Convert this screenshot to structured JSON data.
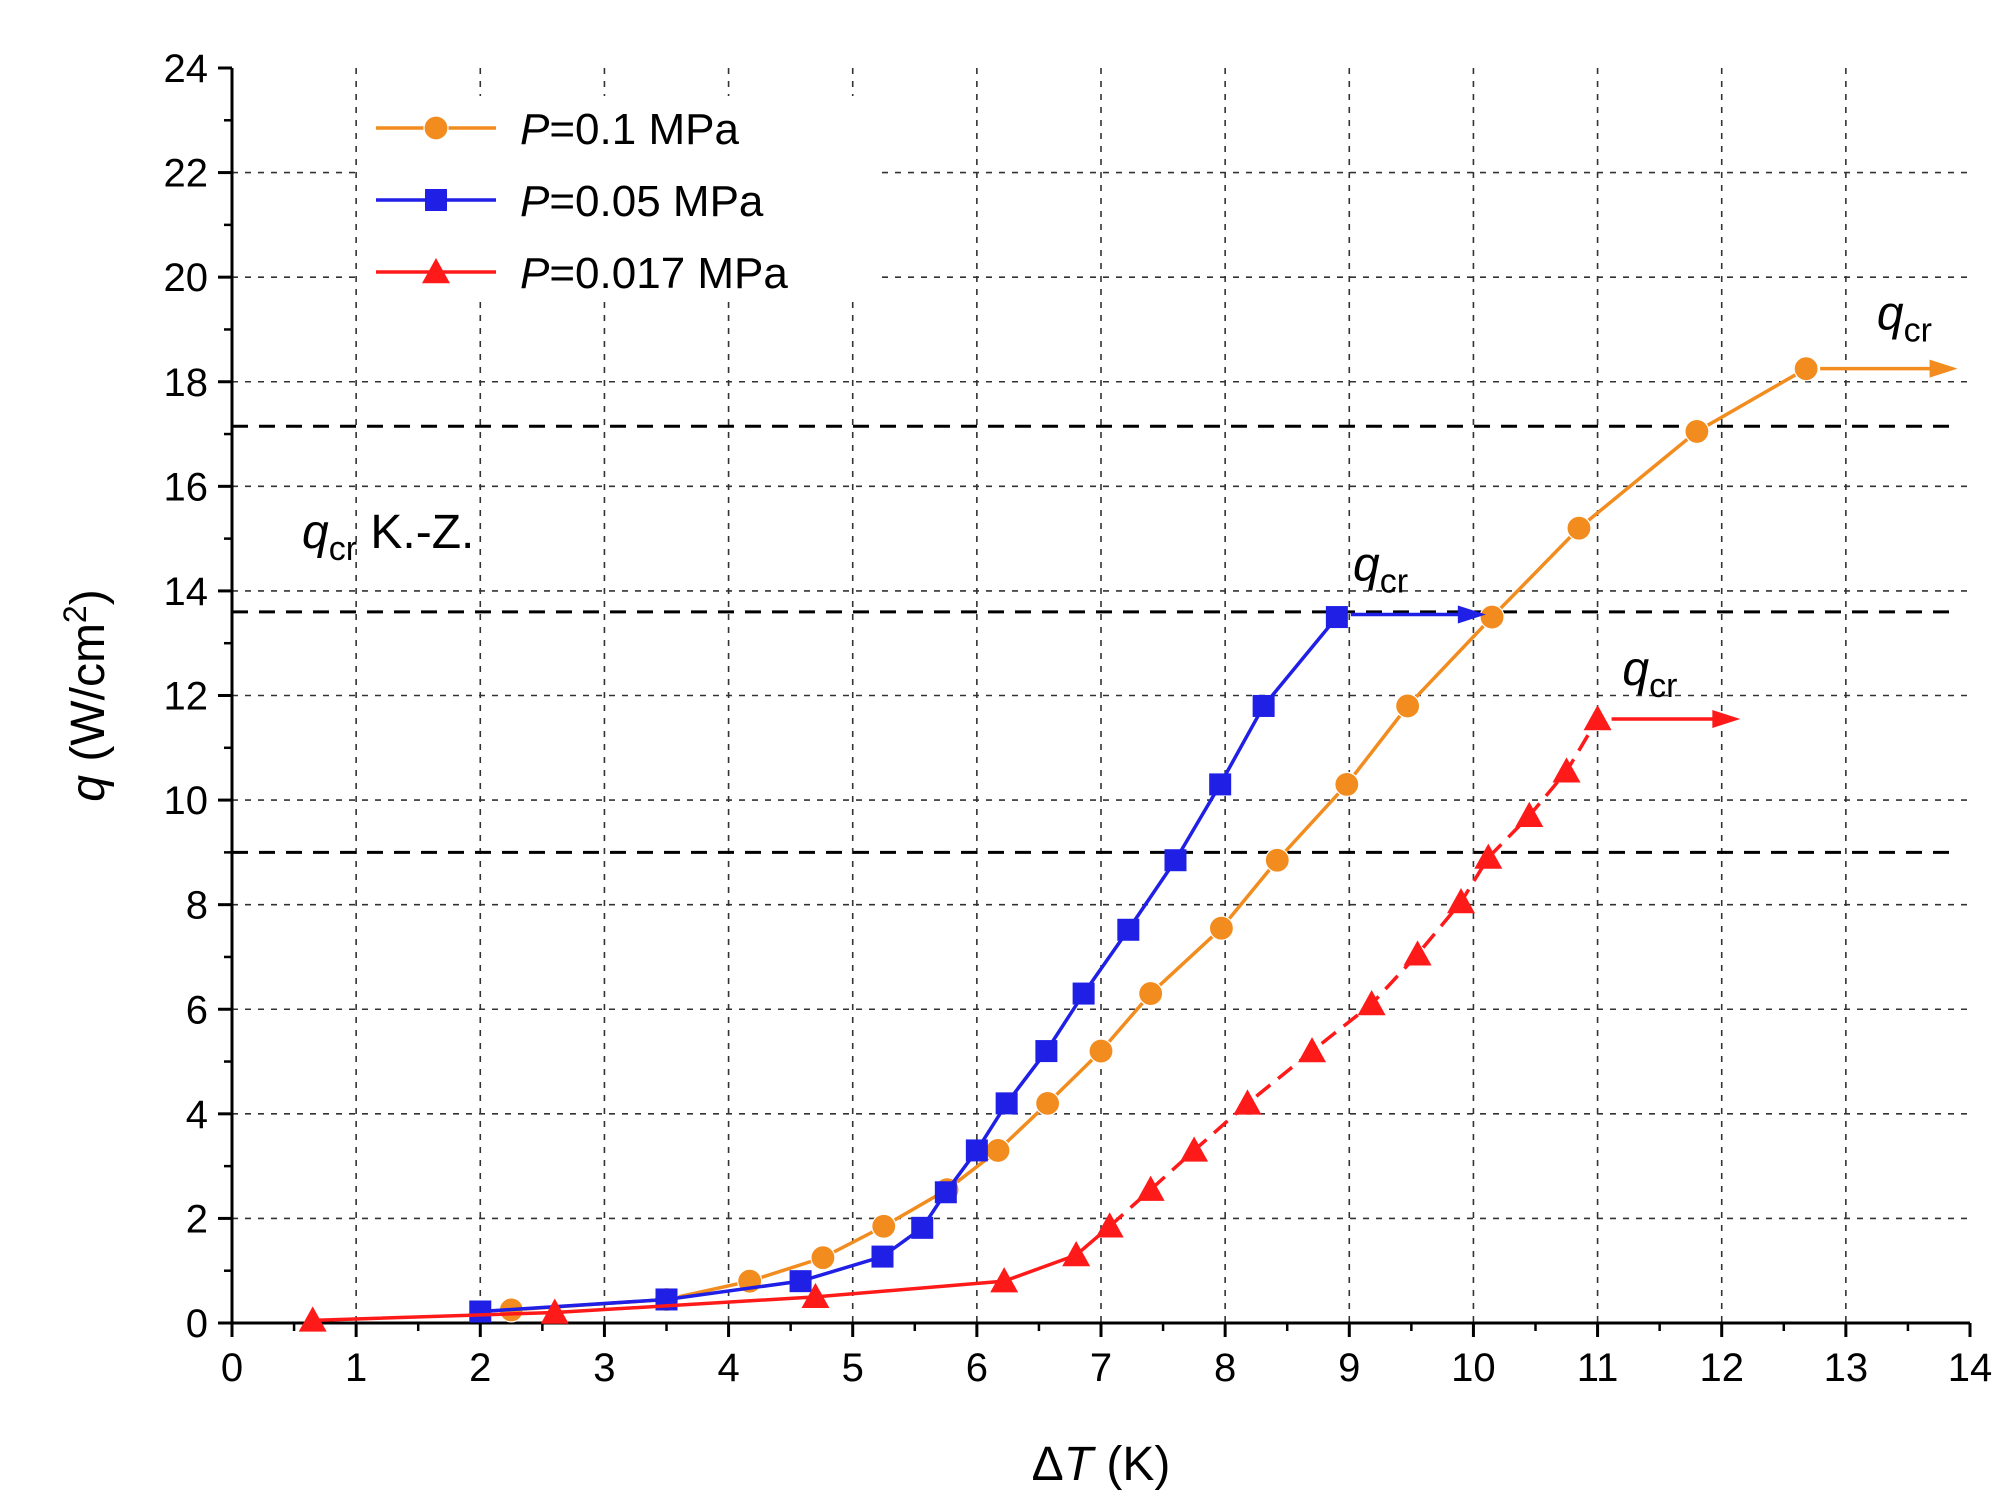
{
  "chart_data": {
    "type": "line",
    "xlabel_symbol": "Δ",
    "xlabel_var": "T",
    "xlabel_unit": " (K)",
    "ylabel_var": "q",
    "ylabel_unit": " (W/cm",
    "ylabel_sup": "2",
    "ylabel_close": ")",
    "xlim": [
      0,
      14
    ],
    "ylim": [
      0,
      24
    ],
    "x_ticks": [
      "0",
      "1",
      "2",
      "3",
      "4",
      "5",
      "6",
      "7",
      "8",
      "9",
      "10",
      "11",
      "12",
      "13",
      "14"
    ],
    "y_ticks": [
      "0",
      "2",
      "4",
      "6",
      "8",
      "10",
      "12",
      "14",
      "16",
      "18",
      "20",
      "22",
      "24"
    ],
    "grid": true,
    "legend_position": "top-left",
    "series": [
      {
        "name_var": "P",
        "name_rest": "=0.1 MPa",
        "color": "#f28c1e",
        "marker": "circle",
        "line_style": "solid",
        "x": [
          2.25,
          3.5,
          4.17,
          4.76,
          5.25,
          5.76,
          6.17,
          6.57,
          7.0,
          7.4,
          7.97,
          8.42,
          8.98,
          9.47,
          10.15,
          10.85,
          11.8,
          12.68
        ],
        "y": [
          0.25,
          0.45,
          0.8,
          1.25,
          1.85,
          2.55,
          3.3,
          4.2,
          5.2,
          6.3,
          7.55,
          8.85,
          10.3,
          11.8,
          13.5,
          15.2,
          17.05,
          18.25
        ]
      },
      {
        "name_var": "P",
        "name_rest": "=0.05 MPa",
        "color": "#1f1fe6",
        "marker": "square",
        "line_style": "solid",
        "x": [
          2.0,
          3.5,
          4.58,
          5.24,
          5.56,
          5.75,
          6.0,
          6.24,
          6.56,
          6.86,
          7.22,
          7.6,
          7.96,
          8.31,
          8.9
        ],
        "y": [
          0.22,
          0.45,
          0.8,
          1.27,
          1.82,
          2.5,
          3.3,
          4.2,
          5.2,
          6.3,
          7.52,
          8.85,
          10.3,
          11.8,
          13.5
        ]
      },
      {
        "name_var": "P",
        "name_rest": "=0.017 MPa",
        "color": "#ff1a1a",
        "marker": "triangle",
        "line_style": "solid-then-dashed",
        "x": [
          0.65,
          2.6,
          4.7,
          6.22,
          6.8,
          7.07,
          7.4,
          7.75,
          8.18,
          8.7,
          9.18,
          9.55,
          9.9,
          10.12,
          10.45,
          10.75,
          11.0
        ],
        "y": [
          0.05,
          0.2,
          0.5,
          0.8,
          1.3,
          1.85,
          2.55,
          3.3,
          4.2,
          5.2,
          6.1,
          7.05,
          8.05,
          8.9,
          9.7,
          10.55,
          11.55
        ]
      }
    ],
    "reference_lines_y": [
      17.15,
      13.6,
      9.0
    ],
    "reference_label_var": "q",
    "reference_label_sub": "cr",
    "reference_label_rest": " K.-Z.",
    "annotations": [
      {
        "var": "q",
        "sub": "cr",
        "color": "#f28c1e",
        "arrow_from": [
          12.68,
          18.25
        ],
        "arrow_to": [
          13.9,
          18.25
        ],
        "text_at": [
          13.25,
          19.0
        ]
      },
      {
        "var": "q",
        "sub": "cr",
        "color": "#1f1fe6",
        "arrow_from": [
          8.9,
          13.55
        ],
        "arrow_to": [
          10.1,
          13.55
        ],
        "text_at": [
          9.03,
          14.2
        ]
      },
      {
        "var": "q",
        "sub": "cr",
        "color": "#ff1a1a",
        "arrow_from": [
          11.0,
          11.55
        ],
        "arrow_to": [
          12.15,
          11.55
        ],
        "text_at": [
          11.2,
          12.2
        ]
      }
    ]
  }
}
